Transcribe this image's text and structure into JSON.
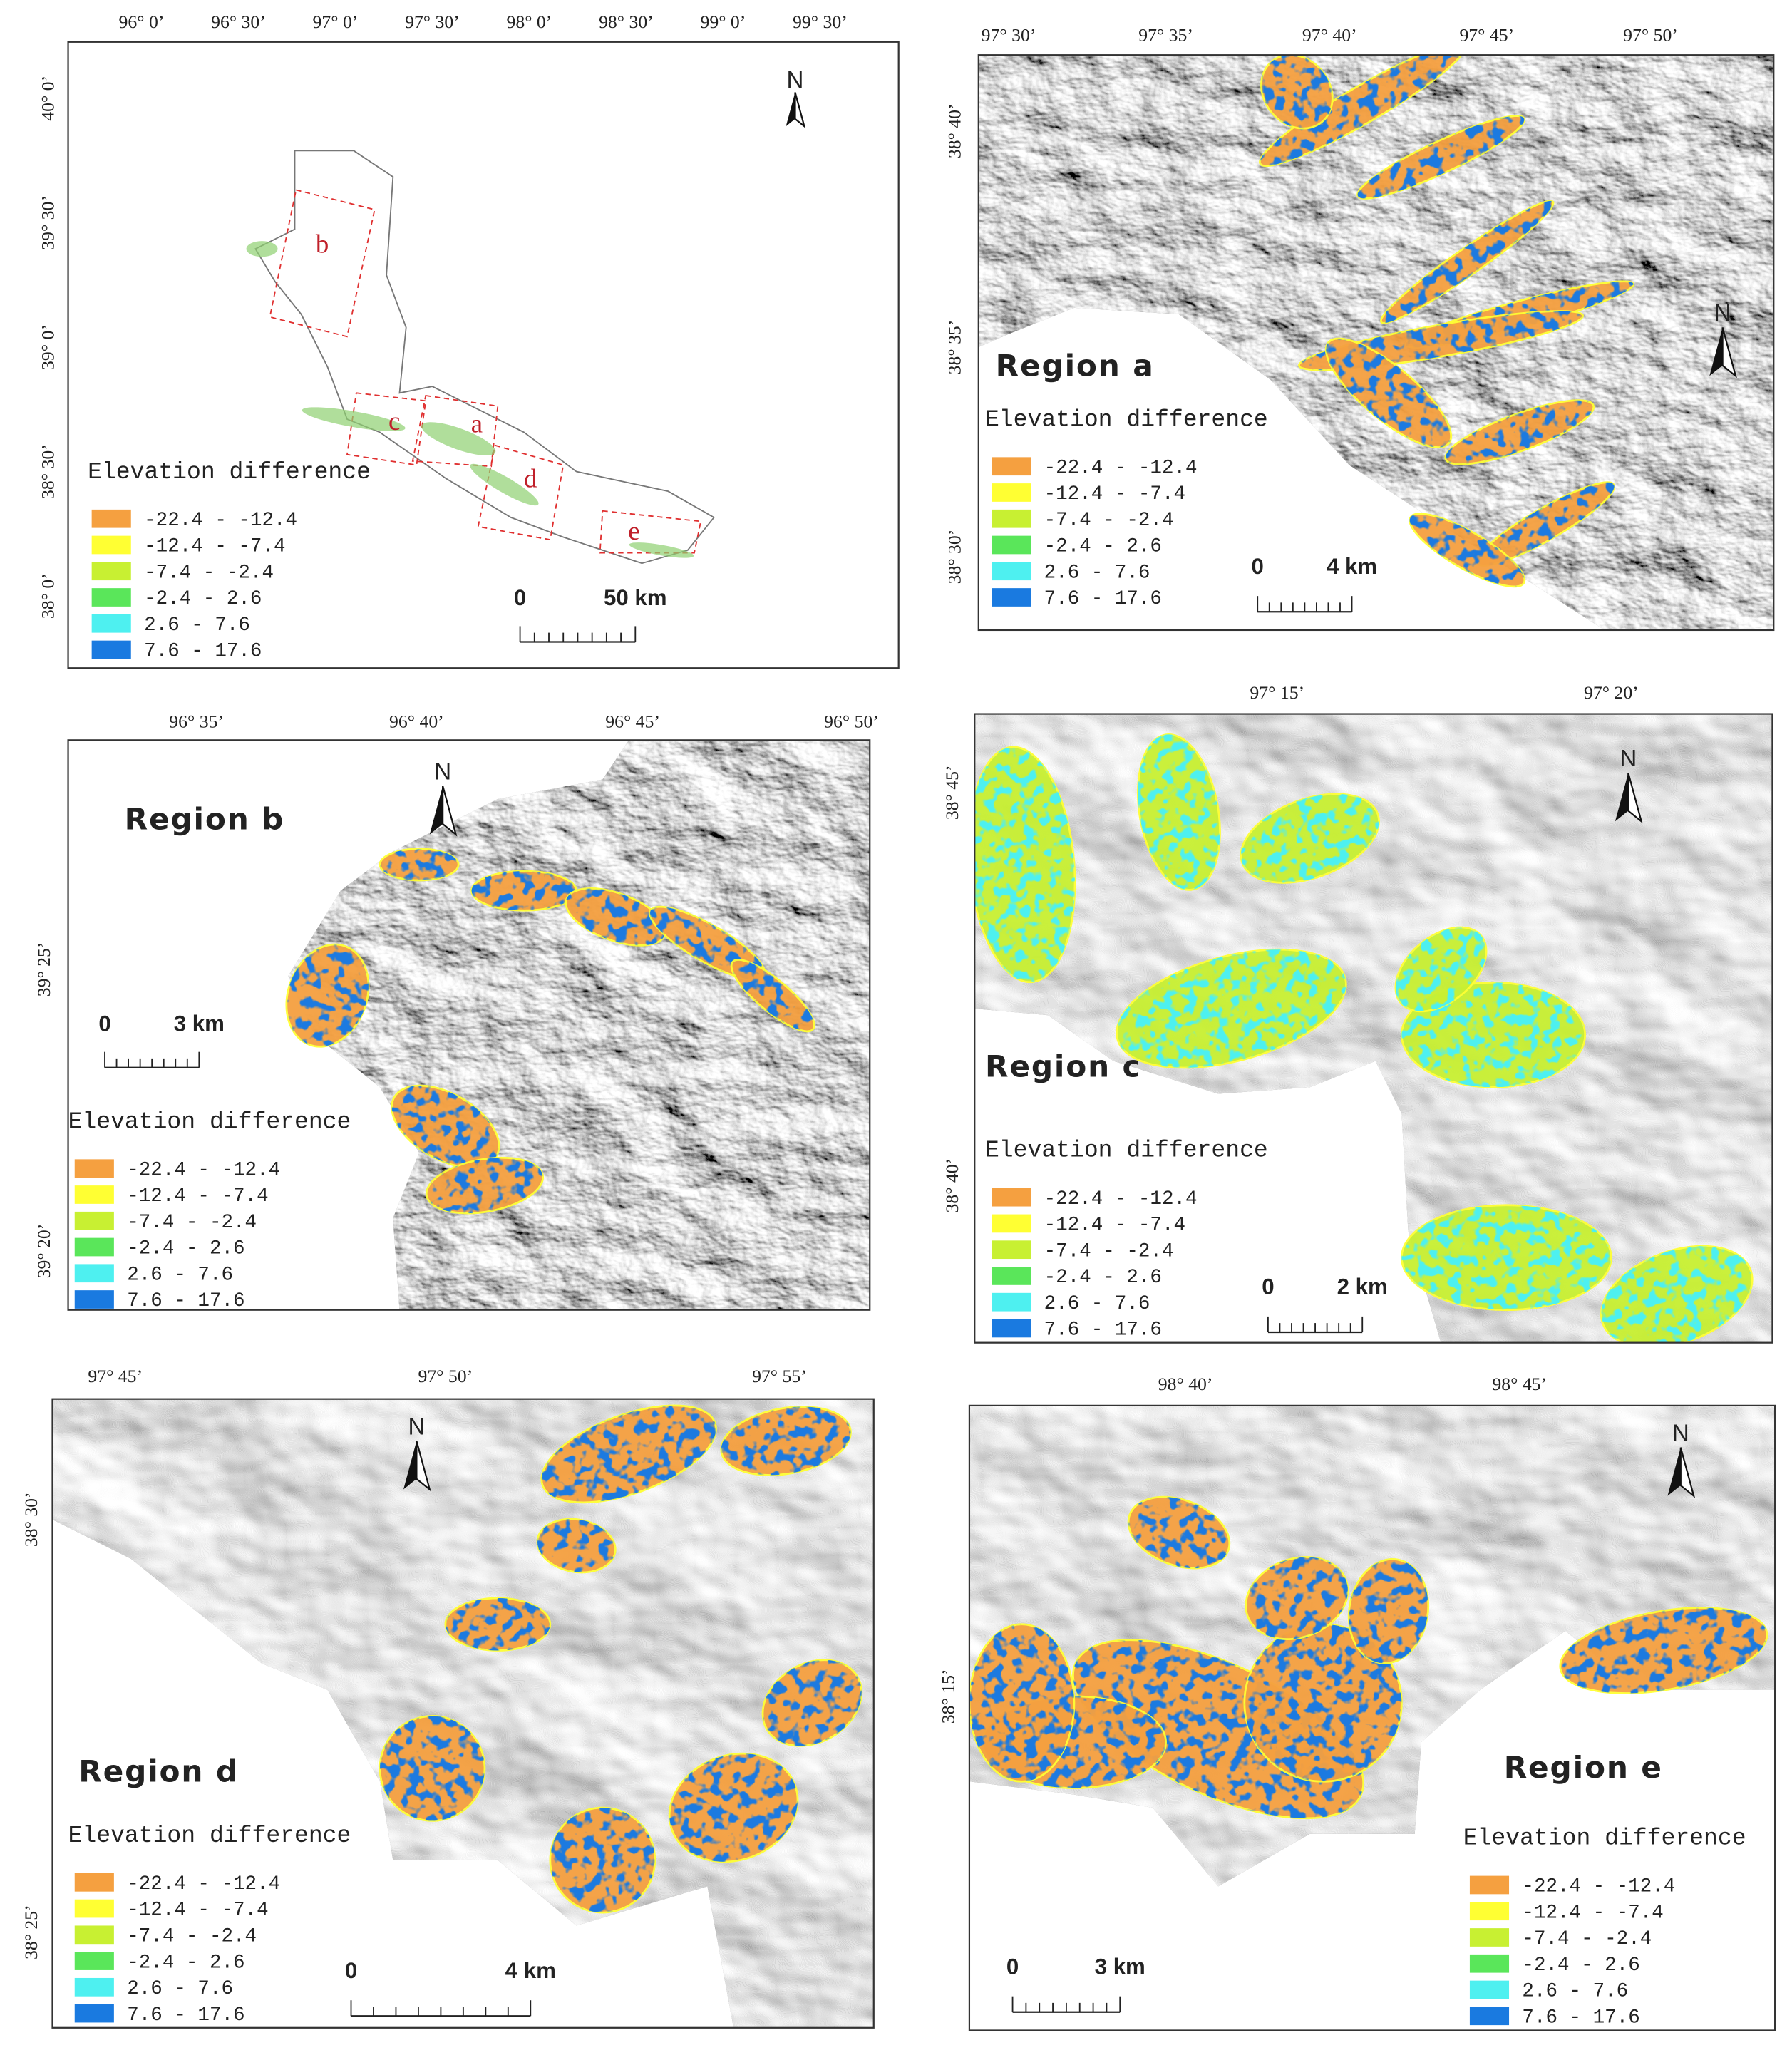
{
  "panels": [
    {
      "lon": [
        "96° 0’",
        "96° 30’",
        "97° 0’",
        "97° 30’",
        "98° 0’",
        "98° 30’",
        "99° 0’",
        "99° 30’"
      ],
      "lat": [
        "40° 0’",
        "39° 30’",
        "39° 0’",
        "38° 30’",
        "38° 0’"
      ],
      "scale": [
        "0",
        "50 km"
      ],
      "north": "N",
      "regions": [
        "b",
        "c",
        "a",
        "d",
        "e"
      ]
    },
    {
      "title": "Region a",
      "lon": [
        "97° 30’",
        "97° 35’",
        "97° 40’",
        "97° 45’",
        "97° 50’"
      ],
      "lat": [
        "38° 40’",
        "38° 35’",
        "38° 30’"
      ],
      "scale": [
        "0",
        "4 km"
      ],
      "north": "N"
    },
    {
      "title": "Region b",
      "lon": [
        "96° 35’",
        "96° 40’",
        "96° 45’",
        "96° 50’"
      ],
      "lat": [
        "39° 25’",
        "39° 20’"
      ],
      "scale": [
        "0",
        "3 km"
      ],
      "north": "N"
    },
    {
      "title": "Region c",
      "lon": [
        "97° 15’",
        "97° 20’"
      ],
      "lat": [
        "38° 45’",
        "38° 40’"
      ],
      "scale": [
        "0",
        "2 km"
      ],
      "north": "N"
    },
    {
      "title": "Region d",
      "lon": [
        "97° 45’",
        "97° 50’",
        "97° 55’"
      ],
      "lat": [
        "38° 30’",
        "38° 25’"
      ],
      "scale": [
        "0",
        "4 km"
      ],
      "north": "N"
    },
    {
      "title": "Region e",
      "lon": [
        "98° 40’",
        "98° 45’"
      ],
      "lat": [
        "38° 15’"
      ],
      "scale": [
        "0",
        "3 km"
      ],
      "north": "N"
    }
  ],
  "legend": {
    "title": "Elevation difference",
    "items": [
      "-22.4 - -12.4",
      "-12.4 - -7.4",
      "-7.4 - -2.4",
      "-2.4 - 2.6",
      "2.6 - 7.6",
      "7.6 - 17.6"
    ],
    "colors": [
      "#f5a040",
      "#ffff33",
      "#c8f032",
      "#5ae65a",
      "#4ef0f0",
      "#1a7ae0"
    ]
  }
}
